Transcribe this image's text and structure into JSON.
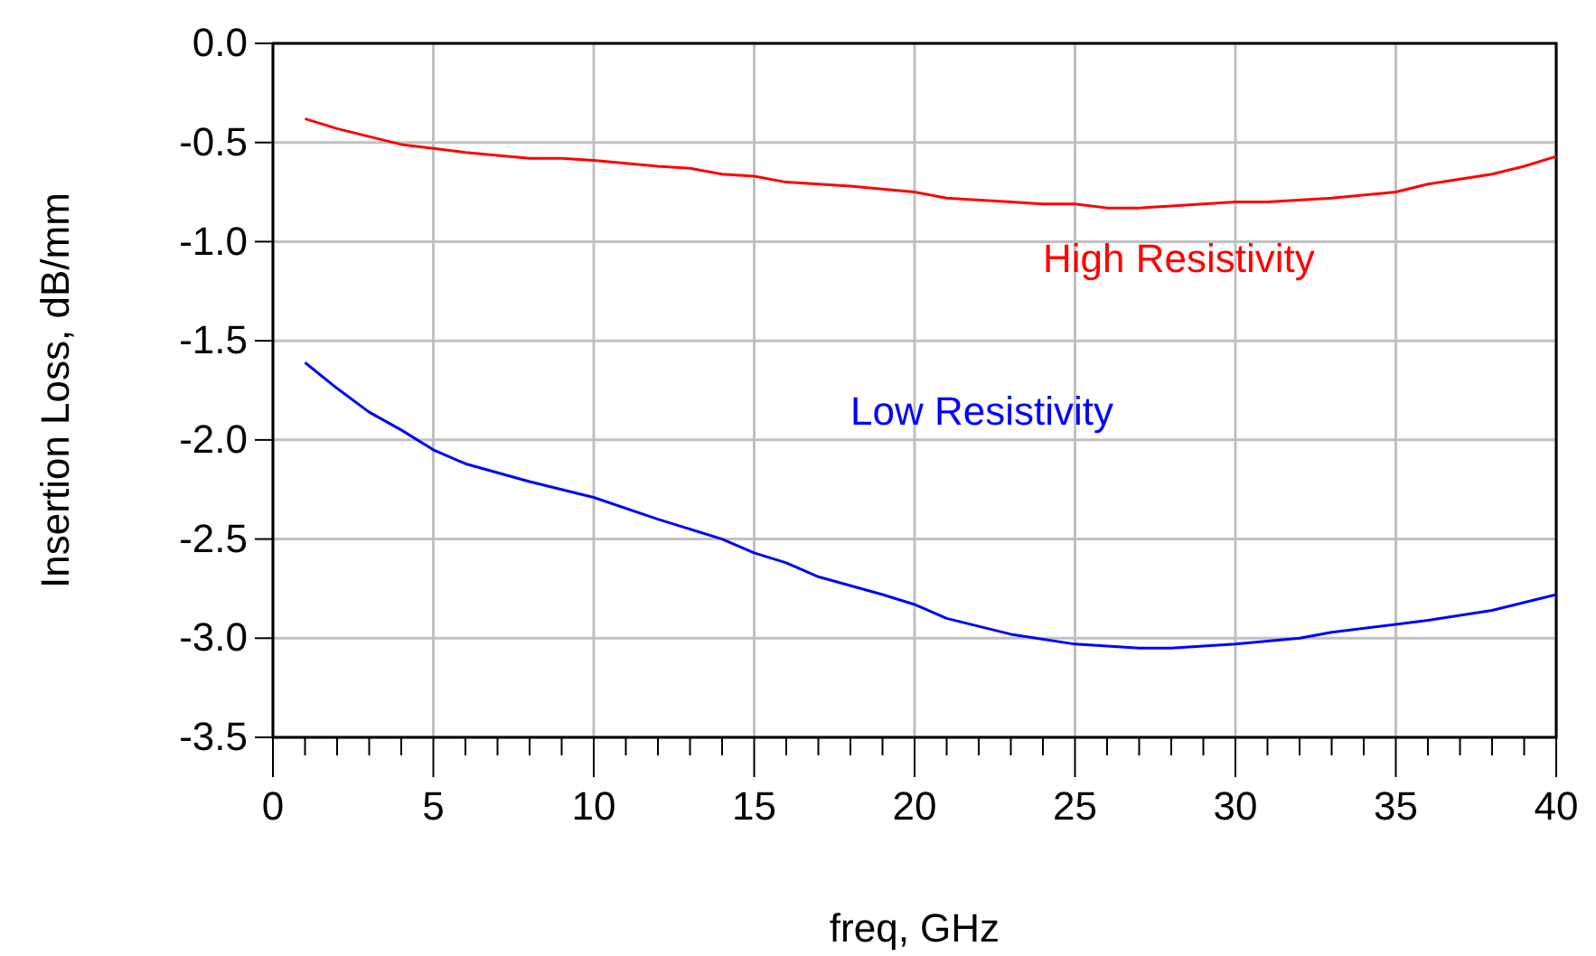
{
  "chart_data": {
    "type": "line",
    "xlabel": "freq, GHz",
    "ylabel": "Insertion Loss, dB/mm",
    "xlim": [
      0,
      40
    ],
    "ylim": [
      -3.5,
      0
    ],
    "xticks": [
      0,
      {
        "value": 1,
        "label": null
      },
      {
        "value": 2,
        "label": null
      },
      {
        "value": 3,
        "label": null
      },
      {
        "value": 4,
        "label": null
      },
      5,
      {
        "value": 6,
        "label": null
      },
      {
        "value": 7,
        "label": null
      },
      {
        "value": 8,
        "label": null
      },
      {
        "value": 9,
        "label": null
      },
      10,
      {
        "value": 11,
        "label": null
      },
      {
        "value": 12,
        "label": null
      },
      {
        "value": 13,
        "label": null
      },
      {
        "value": 14,
        "label": null
      },
      15,
      {
        "value": 16,
        "label": null
      },
      {
        "value": 17,
        "label": null
      },
      {
        "value": 18,
        "label": null
      },
      {
        "value": 19,
        "label": null
      },
      20,
      {
        "value": 21,
        "label": null
      },
      {
        "value": 22,
        "label": null
      },
      {
        "value": 23,
        "label": null
      },
      {
        "value": 24,
        "label": null
      },
      25,
      {
        "value": 26,
        "label": null
      },
      {
        "value": 27,
        "label": null
      },
      {
        "value": 28,
        "label": null
      },
      {
        "value": 29,
        "label": null
      },
      30,
      {
        "value": 31,
        "label": null
      },
      {
        "value": 32,
        "label": null
      },
      {
        "value": 33,
        "label": null
      },
      {
        "value": 34,
        "label": null
      },
      35,
      {
        "value": 36,
        "label": null
      },
      {
        "value": 37,
        "label": null
      },
      {
        "value": 38,
        "label": null
      },
      {
        "value": 39,
        "label": null
      },
      40
    ],
    "yticks": [
      {
        "value": 0,
        "label": "0.0"
      },
      -0.5,
      {
        "value": -1,
        "label": "-1.0"
      },
      -1.5,
      {
        "value": -2,
        "label": "-2.0"
      },
      -2.5,
      {
        "value": -3,
        "label": "-3.0"
      },
      -3.5
    ],
    "grid": true,
    "legend": false,
    "marker": "none",
    "line_style": "solid",
    "series": [
      {
        "name": "High Resistivity",
        "color": "#ff0000",
        "x": [
          1,
          2,
          3,
          4,
          5,
          6,
          8,
          9,
          10,
          12,
          13,
          14,
          15,
          16,
          18,
          20,
          21,
          23,
          24,
          25,
          26,
          27,
          28,
          29,
          30,
          31,
          33,
          35,
          36,
          38,
          39,
          40
        ],
        "values": [
          -0.38,
          -0.43,
          -0.47,
          -0.51,
          -0.53,
          -0.55,
          -0.58,
          -0.58,
          -0.59,
          -0.62,
          -0.63,
          -0.66,
          -0.67,
          -0.7,
          -0.72,
          -0.75,
          -0.78,
          -0.8,
          -0.81,
          -0.81,
          -0.83,
          -0.83,
          -0.82,
          -0.81,
          -0.8,
          -0.8,
          -0.78,
          -0.75,
          -0.71,
          -0.66,
          -0.62,
          -0.57
        ]
      },
      {
        "name": "Low Resistivity",
        "color": "#0000ff",
        "x": [
          1,
          2,
          3,
          4,
          5,
          6,
          8,
          10,
          12,
          14,
          15,
          16,
          17,
          19,
          20,
          21,
          23,
          25,
          27,
          28,
          30,
          32,
          33,
          35,
          36,
          38,
          40
        ],
        "values": [
          -1.61,
          -1.74,
          -1.86,
          -1.95,
          -2.05,
          -2.12,
          -2.21,
          -2.29,
          -2.4,
          -2.5,
          -2.57,
          -2.62,
          -2.69,
          -2.78,
          -2.83,
          -2.9,
          -2.98,
          -3.03,
          -3.05,
          -3.05,
          -3.03,
          -3,
          -2.97,
          -2.93,
          -2.91,
          -2.86,
          -2.78
        ]
      }
    ]
  }
}
